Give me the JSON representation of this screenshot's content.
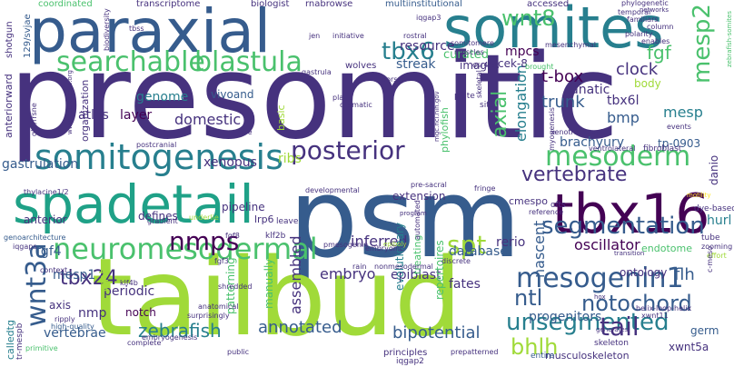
{
  "palette": {
    "purple": "#440154",
    "indigo": "#46327e",
    "blue": "#365c8d",
    "teal": "#277f8e",
    "green": "#1fa187",
    "lime": "#4ac16d",
    "yellowgreen": "#a0da39",
    "yellow": "#fde725"
  },
  "words": {
    "presomitic": "presomitic",
    "psm": "psm",
    "tailbud": "tailbud",
    "paraxial": "paraxial",
    "somites": "somites",
    "spadetail": "spadetail",
    "tbx16": "tbx16",
    "somitogenesis": "somitogenesis",
    "searchable": "searchable",
    "blastula": "blastula",
    "neuromesodermal": "neuromesodermal",
    "mesogenin1": "mesogenin1",
    "unsegmented": "unsegmented",
    "segmentation": "segmentation",
    "mesoderm": "mesoderm",
    "tbx6": "tbx6",
    "wnt8": "wnt8",
    "mesp2": "mesp2",
    "wnt3a": "wnt3a",
    "tbx24": "tbx24",
    "nmps": "nmps",
    "spt": "spt",
    "posterior": "posterior",
    "vertebrate": "vertebrate",
    "notochord": "notochord",
    "ntl": "ntl",
    "tail": "tail",
    "bhlh": "bhlh",
    "axial": "axial",
    "domestic": "domestic",
    "trunk": "trunk",
    "elongation": "elongation",
    "brachyury": "brachyury",
    "oscillator": "oscillator",
    "tbox": "t-box",
    "lunatic": "lunatic",
    "clock": "clock",
    "fgf": "fgf",
    "mesp": "mesp",
    "bmp": "bmp",
    "tbx6l": "tbx6l",
    "tp0903": "tp-0903",
    "streak": "streak",
    "resource": "resource",
    "curated": "curated",
    "images": "images",
    "cek8": "cek-8",
    "mpcs": "mpcs",
    "body": "body",
    "gastrulation": "gastrulation",
    "xenopus": "xenopus",
    "ribs": "ribs",
    "mesp1": "mesp1",
    "fgf4": "fgf4",
    "axis": "axis",
    "nmp": "nmp",
    "vertebrae": "vertebrae",
    "zebrafish": "zebrafish",
    "annotated": "annotated",
    "bipotential": "bipotential",
    "atlas": "atlas",
    "layer": "layer",
    "genome": "genome",
    "vivoand": "vivoand",
    "embryo": "embryo",
    "assembled": "assembled",
    "inferred": "inferred",
    "epiblast": "epiblast",
    "fates": "fates",
    "database": "database",
    "nascent": "nascent",
    "flh": "flh",
    "rerio": "rerio",
    "periodic": "periodic",
    "defines": "defines",
    "anterior": "anterior",
    "notch": "notch",
    "wnt": "wnt",
    "pipeline": "pipeline",
    "extension": "extension",
    "progenitors": "progenitors",
    "ontology": "ontology",
    "germ": "germ",
    "xwnt5a": "xwnt5a",
    "musculoskeleton": "musculoskeleton",
    "principles": "principles",
    "iqgap2": "iqgap2",
    "entire": "entire",
    "skeleton": "skeleton",
    "manually": "manually",
    "patterning": "patterning",
    "evolutionary": "evolutionary",
    "repertoires": "repertoires",
    "treating": "treating",
    "hurl": "hurl",
    "cmespo": "cmespo",
    "danio": "danio",
    "endotome": "endotome",
    "dyebased": "dye-based",
    "tube": "tube",
    "zooming": "zooming",
    "effort": "effort",
    "motility": "motility",
    "fibroblast": "fibroblast",
    "ventrolateral": "ventrolateral",
    "events": "events",
    "ofts": "ofts",
    "myogenesis": "myogenesis",
    "fringe": "fringe",
    "situ": "situ",
    "plate": "plate",
    "phylofish": "phylofish",
    "basic": "basic",
    "tcre": "tcre",
    "postcranial": "postcranial",
    "developmental": "developmental",
    "presacral": "pre-sacral",
    "leave": "leave",
    "gradient": "gradient",
    "klf2b": "klf2b",
    "lrp6": "lrp6",
    "fgf8": "fgf8",
    "underlie": "underlie",
    "thylacine": "thylacine1/2",
    "pmesogenin": "pmesogenin",
    "embryonic": "embryonic",
    "epiboly": "epiboly",
    "program": "program",
    "automated": "automated",
    "reference": "reference",
    "transition": "transition",
    "iqgaps": "iqgaps",
    "genoarchitecture": "genoarchitecture",
    "context": "context",
    "klf4b": "klf4b",
    "fgf3": "fgf3",
    "rain": "rain",
    "nonmesodermal": "nonmesodermal",
    "discrete": "discrete",
    "ripply": "ripply",
    "highquality": "high-quality",
    "shredded": "shredded",
    "anatomical": "anatomical",
    "surprisingly": "surprisingly",
    "embryogenesis": "embryogenesis",
    "complete": "complete",
    "public": "public",
    "prepatterned": "prepatterned",
    "helixloophelix": "helix-loop-helix",
    "xwnt11": "xwnt11",
    "generates": "generates",
    "hox": "hox",
    "primitive": "primitive",
    "calledtg": "calledtg",
    "trmespb": "tr-mespb",
    "coordinated": "coordinated",
    "transcriptome": "transcriptome",
    "biologist": "biologist",
    "rnabrowse": "rnabrowse",
    "multiinstitutional": "multiinstitutional",
    "accessed": "accessed",
    "iqgap3": "iqgap3",
    "phylogenetic": "phylogenetic",
    "temporal": "temporal",
    "familiars": "familiars",
    "column": "column",
    "polarity": "polarity",
    "enables": "enables",
    "mesenchymal": "mesenchymal",
    "somitomere": "somitomere",
    "muscles": "muscles",
    "esr45": "esr4/5",
    "brought": "brought",
    "zebrafishsomites": "zebrafish-somites",
    "networks": "networks",
    "shotgun": "shotgun",
    "svjae": "129/svjae",
    "anteriorward": "anteriorward",
    "organization": "organization",
    "plan": "plan",
    "dramatic": "dramatic",
    "wolves": "wolves",
    "gastrula": "gastrula",
    "dorsal": "dorsal",
    "suckers": "suckers",
    "jen": "jen",
    "initiative": "initiative",
    "tbss": "tbss",
    "biodiversity": "biodiversity",
    "url1": "www.neuresssss.org",
    "url2": "mgc.nci.nih.gov",
    "xenotransgenic": "xenotransgenic",
    "skeletal": "skeletal",
    "rostral": "rostral",
    "gbrrrsne": "gbr/rrsne",
    "cmeso": "c-meso"
  }
}
